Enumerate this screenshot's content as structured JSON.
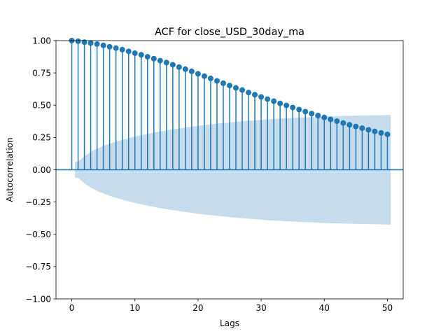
{
  "chart_data": {
    "type": "stem",
    "title": "ACF for close_USD_30day_ma",
    "xlabel": "Lags",
    "ylabel": "Autocorrelation",
    "xlim": [
      -2.5,
      52.5
    ],
    "ylim": [
      -1.0,
      1.0
    ],
    "xticks": [
      0,
      10,
      20,
      30,
      40,
      50
    ],
    "yticks": [
      -1.0,
      -0.75,
      -0.5,
      -0.25,
      0.0,
      0.25,
      0.5,
      0.75,
      1.0
    ],
    "ytick_labels": [
      "−1.00",
      "−0.75",
      "−0.50",
      "−0.25",
      "0.00",
      "0.25",
      "0.50",
      "0.75",
      "1.00"
    ],
    "xtick_labels": [
      "0",
      "10",
      "20",
      "30",
      "40",
      "50"
    ],
    "grid": false,
    "colors": {
      "stem": "#1f77b4",
      "confint": "#c5dcee",
      "axes": "#000000"
    },
    "lags": [
      0,
      1,
      2,
      3,
      4,
      5,
      6,
      7,
      8,
      9,
      10,
      11,
      12,
      13,
      14,
      15,
      16,
      17,
      18,
      19,
      20,
      21,
      22,
      23,
      24,
      25,
      26,
      27,
      28,
      29,
      30,
      31,
      32,
      33,
      34,
      35,
      36,
      37,
      38,
      39,
      40,
      41,
      42,
      43,
      44,
      45,
      46,
      47,
      48,
      49,
      50
    ],
    "acf": [
      1.0,
      0.995,
      0.988,
      0.981,
      0.973,
      0.963,
      0.952,
      0.942,
      0.93,
      0.917,
      0.903,
      0.89,
      0.875,
      0.86,
      0.845,
      0.83,
      0.813,
      0.795,
      0.779,
      0.762,
      0.743,
      0.725,
      0.707,
      0.688,
      0.67,
      0.652,
      0.634,
      0.617,
      0.598,
      0.581,
      0.564,
      0.547,
      0.531,
      0.514,
      0.498,
      0.482,
      0.466,
      0.45,
      0.435,
      0.42,
      0.405,
      0.39,
      0.376,
      0.362,
      0.348,
      0.335,
      0.322,
      0.309,
      0.297,
      0.285,
      0.274
    ],
    "confint_upper": [
      null,
      0.062,
      0.105,
      0.138,
      0.163,
      0.184,
      0.202,
      0.218,
      0.232,
      0.245,
      0.257,
      0.268,
      0.278,
      0.288,
      0.297,
      0.305,
      0.313,
      0.32,
      0.327,
      0.334,
      0.34,
      0.346,
      0.351,
      0.357,
      0.362,
      0.366,
      0.371,
      0.375,
      0.379,
      0.383,
      0.386,
      0.39,
      0.393,
      0.396,
      0.399,
      0.401,
      0.404,
      0.406,
      0.408,
      0.41,
      0.412,
      0.414,
      0.415,
      0.417,
      0.418,
      0.419,
      0.42,
      0.421,
      0.422,
      0.423,
      0.424
    ],
    "confint_lower": [
      null,
      -0.062,
      -0.105,
      -0.138,
      -0.163,
      -0.184,
      -0.202,
      -0.218,
      -0.232,
      -0.245,
      -0.257,
      -0.268,
      -0.278,
      -0.288,
      -0.297,
      -0.305,
      -0.313,
      -0.32,
      -0.327,
      -0.334,
      -0.34,
      -0.346,
      -0.351,
      -0.357,
      -0.362,
      -0.366,
      -0.371,
      -0.375,
      -0.379,
      -0.383,
      -0.386,
      -0.39,
      -0.393,
      -0.396,
      -0.399,
      -0.401,
      -0.404,
      -0.406,
      -0.408,
      -0.41,
      -0.412,
      -0.414,
      -0.415,
      -0.417,
      -0.418,
      -0.419,
      -0.42,
      -0.421,
      -0.422,
      -0.423,
      -0.424
    ]
  }
}
